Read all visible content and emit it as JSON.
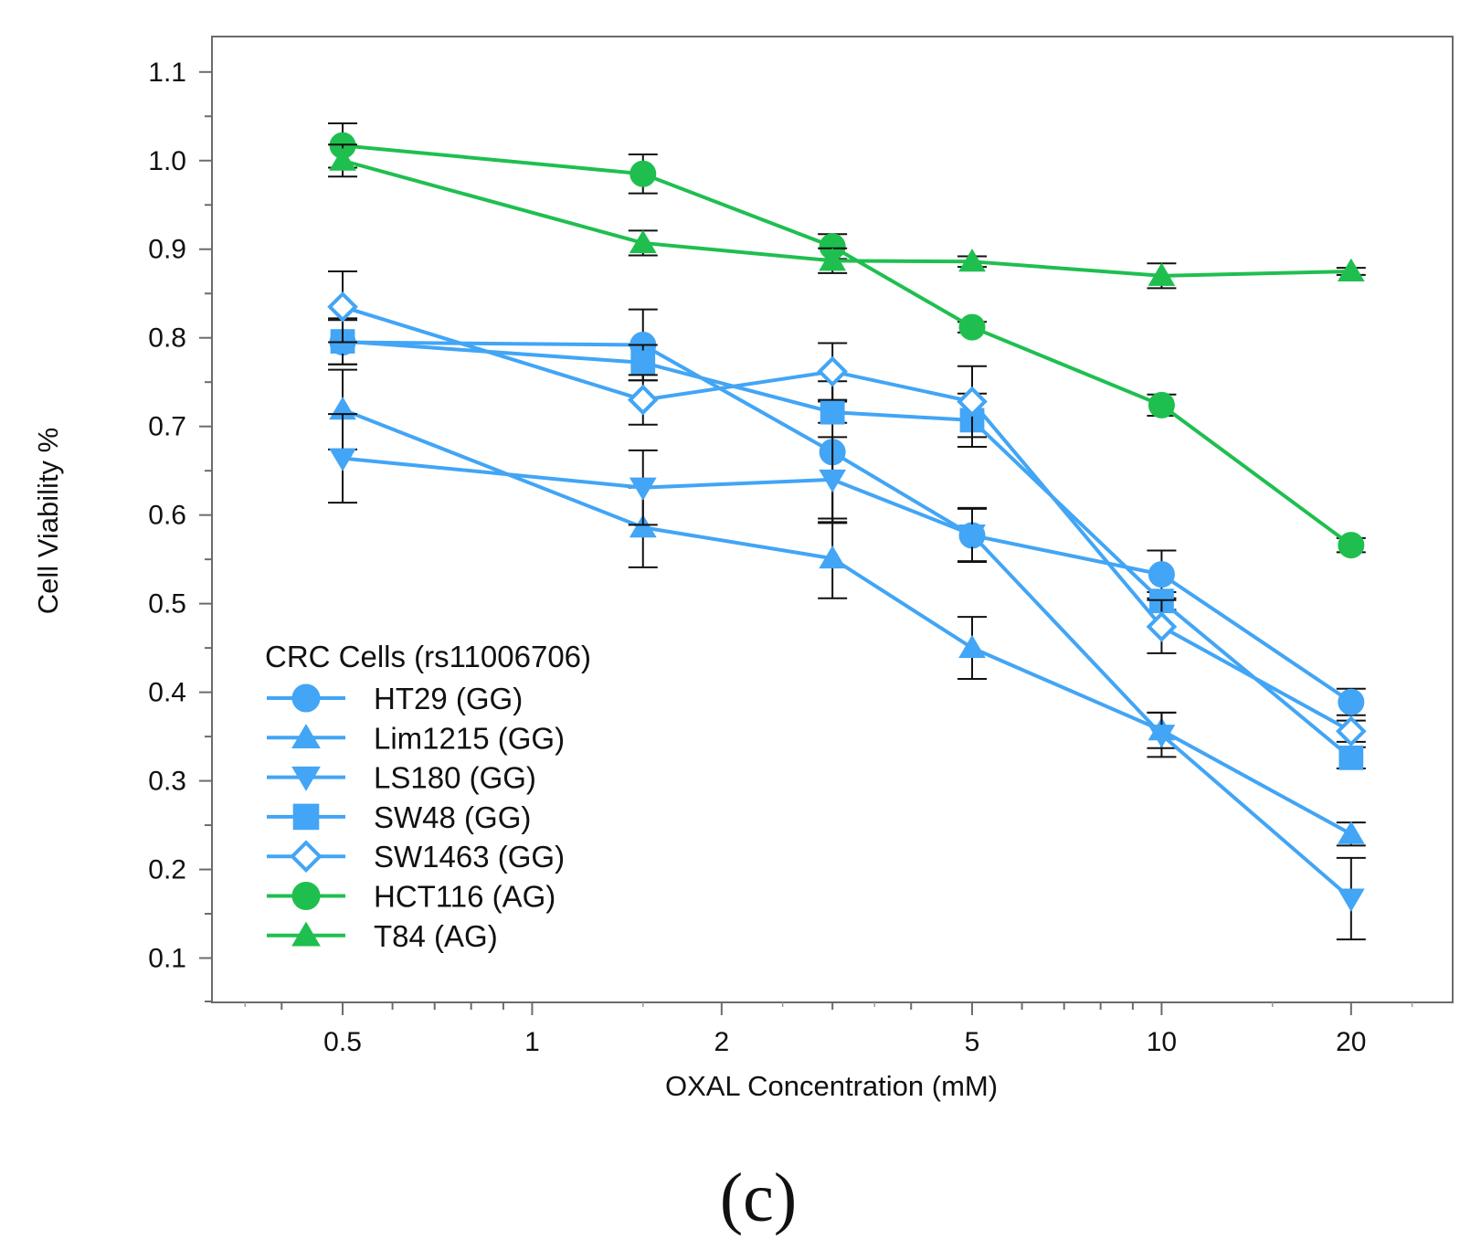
{
  "chart_data": {
    "type": "line",
    "panel_label": "(c)",
    "xlabel": "OXAL Concentration (mM)",
    "ylabel": "Cell Viability %",
    "x_scale": "log",
    "xlim": [
      0.31,
      29
    ],
    "ylim": [
      0.05,
      1.14
    ],
    "x_ticks": [
      {
        "value": 0.5,
        "label": "0.5"
      },
      {
        "value": 1,
        "label": "1"
      },
      {
        "value": 2,
        "label": "2"
      },
      {
        "value": 5,
        "label": "5"
      },
      {
        "value": 10,
        "label": "10"
      },
      {
        "value": 20,
        "label": "20"
      }
    ],
    "y_ticks": [
      {
        "value": 0.1,
        "label": "0.1"
      },
      {
        "value": 0.2,
        "label": "0.2"
      },
      {
        "value": 0.3,
        "label": "0.3"
      },
      {
        "value": 0.4,
        "label": "0.4"
      },
      {
        "value": 0.5,
        "label": "0.5"
      },
      {
        "value": 0.6,
        "label": "0.6"
      },
      {
        "value": 0.7,
        "label": "0.7"
      },
      {
        "value": 0.8,
        "label": "0.8"
      },
      {
        "value": 0.9,
        "label": "0.9"
      },
      {
        "value": 1.0,
        "label": "1.0"
      },
      {
        "value": 1.1,
        "label": "1.1"
      }
    ],
    "grid": false,
    "legend": {
      "title": "CRC Cells (rs11006706)",
      "placement": "bottom-left"
    },
    "x": [
      0.5,
      1.5,
      3,
      5,
      10,
      20
    ],
    "series": [
      {
        "name": "HT29 (GG)",
        "color": "#42a5f5",
        "marker": "circle",
        "filled": true,
        "values": [
          0.795,
          0.792,
          0.671,
          0.577,
          0.533,
          0.389
        ],
        "errors": [
          0.025,
          0.04,
          0.08,
          0.03,
          0.027,
          0.015
        ]
      },
      {
        "name": "Lim1215 (GG)",
        "color": "#42a5f5",
        "marker": "triangle-up",
        "filled": true,
        "values": [
          0.719,
          0.586,
          0.551,
          0.45,
          0.357,
          0.24
        ],
        "errors": [
          0.045,
          0.045,
          0.045,
          0.035,
          0.02,
          0.013
        ]
      },
      {
        "name": "LS180 (GG)",
        "color": "#42a5f5",
        "marker": "triangle-down",
        "filled": true,
        "values": [
          0.664,
          0.631,
          0.64,
          0.578,
          0.352,
          0.167
        ],
        "errors": [
          0.05,
          0.042,
          0.048,
          0.03,
          0.025,
          0.046
        ]
      },
      {
        "name": "SW48 (GG)",
        "color": "#42a5f5",
        "marker": "square",
        "filled": true,
        "values": [
          0.796,
          0.772,
          0.716,
          0.707,
          0.503,
          0.326
        ],
        "errors": [
          0.026,
          0.02,
          0.012,
          0.03,
          0.01,
          0.012
        ]
      },
      {
        "name": "SW1463 (GG)",
        "color": "#42a5f5",
        "marker": "diamond",
        "filled": false,
        "values": [
          0.835,
          0.73,
          0.762,
          0.728,
          0.474,
          0.356
        ],
        "errors": [
          0.04,
          0.028,
          0.032,
          0.04,
          0.03,
          0.012
        ]
      },
      {
        "name": "HCT116 (AG)",
        "color": "#1fbf4f",
        "marker": "circle",
        "filled": true,
        "values": [
          1.017,
          0.985,
          0.903,
          0.812,
          0.724,
          0.566
        ],
        "errors": [
          0.025,
          0.022,
          0.014,
          0.006,
          0.012,
          0.008
        ]
      },
      {
        "name": "T84 (AG)",
        "color": "#1fbf4f",
        "marker": "triangle-up",
        "filled": true,
        "values": [
          1.0,
          0.907,
          0.887,
          0.886,
          0.87,
          0.875
        ],
        "errors": [
          0.018,
          0.014,
          0.014,
          0.006,
          0.014,
          0.004
        ]
      }
    ]
  }
}
